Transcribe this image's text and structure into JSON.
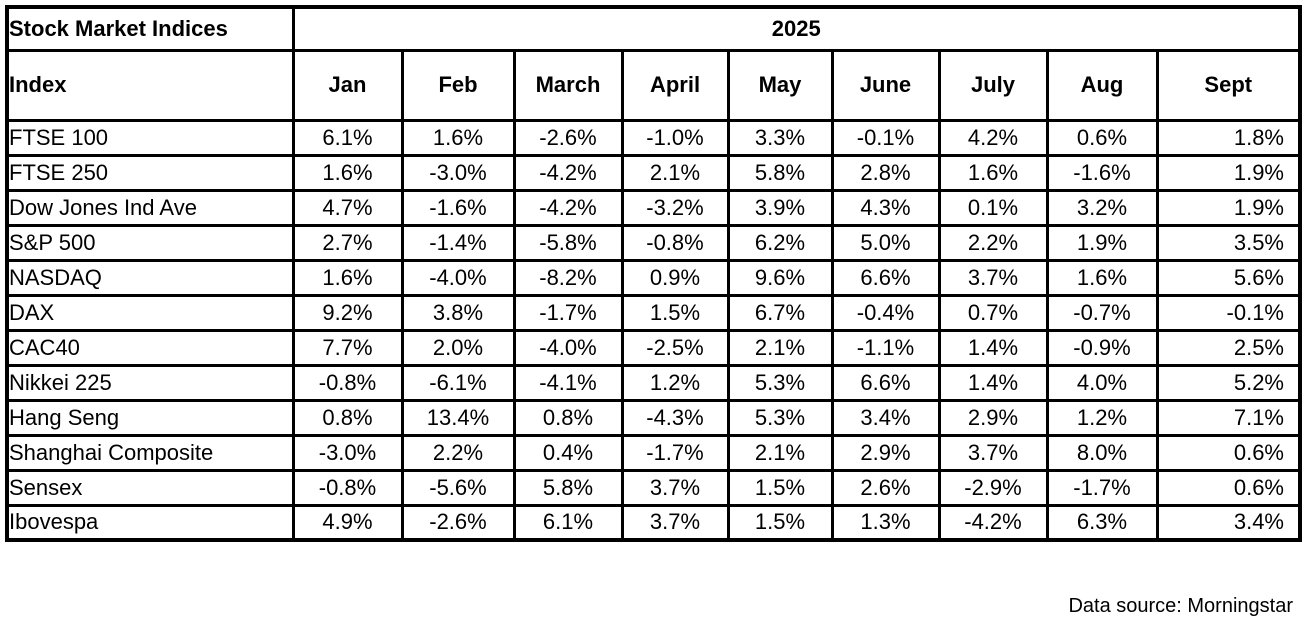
{
  "table": {
    "corner_label": "Stock Market Indices",
    "year_header": "2025",
    "index_header": "Index",
    "footer": "Data source: Morningstar"
  },
  "colors": {
    "border": "#000000",
    "text": "#000000",
    "background": "#ffffff"
  },
  "chart_data": {
    "type": "table",
    "title": "Stock Market Indices",
    "year": "2025",
    "units": "%",
    "categories": [
      "Jan",
      "Feb",
      "March",
      "April",
      "May",
      "June",
      "July",
      "Aug",
      "Sept"
    ],
    "series": [
      {
        "name": "FTSE 100",
        "values": [
          6.1,
          1.6,
          -2.6,
          -1.0,
          3.3,
          -0.1,
          4.2,
          0.6,
          1.8
        ]
      },
      {
        "name": "FTSE 250",
        "values": [
          1.6,
          -3.0,
          -4.2,
          2.1,
          5.8,
          2.8,
          1.6,
          -1.6,
          1.9
        ]
      },
      {
        "name": "Dow Jones Ind Ave",
        "values": [
          4.7,
          -1.6,
          -4.2,
          -3.2,
          3.9,
          4.3,
          0.1,
          3.2,
          1.9
        ]
      },
      {
        "name": "S&P 500",
        "values": [
          2.7,
          -1.4,
          -5.8,
          -0.8,
          6.2,
          5.0,
          2.2,
          1.9,
          3.5
        ]
      },
      {
        "name": "NASDAQ",
        "values": [
          1.6,
          -4.0,
          -8.2,
          0.9,
          9.6,
          6.6,
          3.7,
          1.6,
          5.6
        ]
      },
      {
        "name": "DAX",
        "values": [
          9.2,
          3.8,
          -1.7,
          1.5,
          6.7,
          -0.4,
          0.7,
          -0.7,
          -0.1
        ]
      },
      {
        "name": "CAC40",
        "values": [
          7.7,
          2.0,
          -4.0,
          -2.5,
          2.1,
          -1.1,
          1.4,
          -0.9,
          2.5
        ]
      },
      {
        "name": "Nikkei 225",
        "values": [
          -0.8,
          -6.1,
          -4.1,
          1.2,
          5.3,
          6.6,
          1.4,
          4.0,
          5.2
        ]
      },
      {
        "name": "Hang Seng",
        "values": [
          0.8,
          13.4,
          0.8,
          -4.3,
          5.3,
          3.4,
          2.9,
          1.2,
          7.1
        ]
      },
      {
        "name": "Shanghai Composite",
        "values": [
          -3.0,
          2.2,
          0.4,
          -1.7,
          2.1,
          2.9,
          3.7,
          8.0,
          0.6
        ]
      },
      {
        "name": "Sensex",
        "values": [
          -0.8,
          -5.6,
          5.8,
          3.7,
          1.5,
          2.6,
          -2.9,
          -1.7,
          0.6
        ]
      },
      {
        "name": "Ibovespa",
        "values": [
          4.9,
          -2.6,
          6.1,
          3.7,
          1.5,
          1.3,
          -4.2,
          6.3,
          3.4
        ]
      }
    ],
    "source": "Data source: Morningstar",
    "layout": {
      "grid": "all-borders",
      "index_column_align": "left",
      "month_columns_align": "center",
      "last_column_align": "right"
    }
  }
}
